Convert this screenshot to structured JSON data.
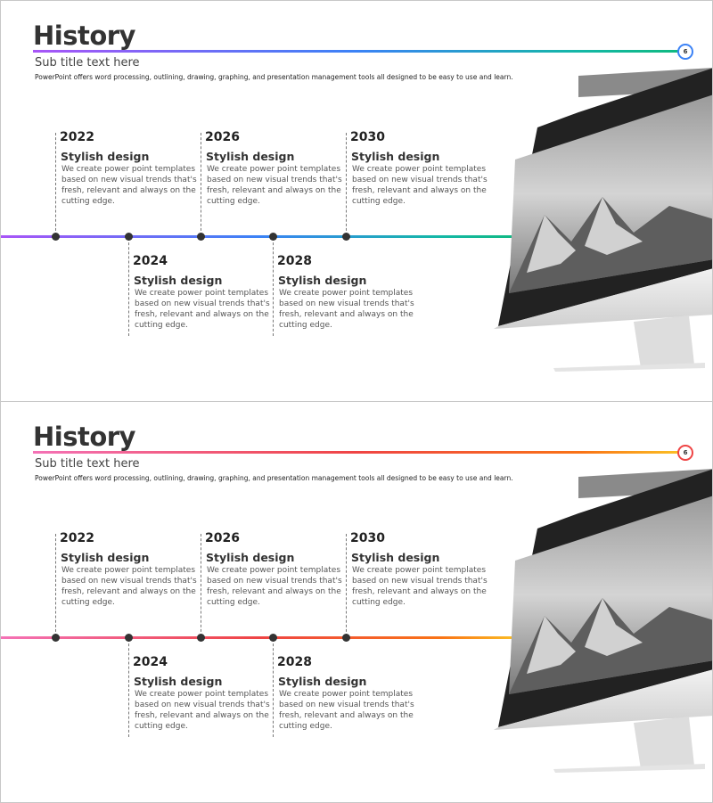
{
  "slides": [
    {
      "title": "History",
      "subtitle": "Sub title text here",
      "description": "PowerPoint offers word processing, outlining, drawing, graphing, and presentation management tools all designed to be easy to use and learn.",
      "page_number": "6",
      "colors": [
        "#a855f7",
        "#3b82f6",
        "#14b8a6",
        "#10b981"
      ],
      "items": [
        {
          "year": "2022",
          "heading": "Stylish design",
          "text": "We create power point templates based on new visual trends that's fresh, relevant and always on the cutting edge."
        },
        {
          "year": "2024",
          "heading": "Stylish design",
          "text": "We create power point templates based on new visual trends that's fresh, relevant and always on the cutting edge."
        },
        {
          "year": "2026",
          "heading": "Stylish design",
          "text": "We create power point templates based on new visual trends that's fresh, relevant and always on the cutting edge."
        },
        {
          "year": "2028",
          "heading": "Stylish design",
          "text": "We create power point templates based on new visual trends that's fresh, relevant and always on the cutting edge."
        },
        {
          "year": "2030",
          "heading": "Stylish design",
          "text": "We create power point templates based on new visual trends that's fresh, relevant and always on the cutting edge."
        }
      ]
    },
    {
      "title": "History",
      "subtitle": "Sub title text here",
      "description": "PowerPoint offers word processing, outlining, drawing, graphing, and presentation management tools all designed to be easy to use and learn.",
      "page_number": "6",
      "colors": [
        "#f472b6",
        "#ef4444",
        "#f97316",
        "#fbbf24"
      ],
      "items": [
        {
          "year": "2022",
          "heading": "Stylish design",
          "text": "We create power point templates based on new visual trends that's fresh, relevant and always on the cutting edge."
        },
        {
          "year": "2024",
          "heading": "Stylish design",
          "text": "We create power point templates based on new visual trends that's fresh, relevant and always on the cutting edge."
        },
        {
          "year": "2026",
          "heading": "Stylish design",
          "text": "We create power point templates based on new visual trends that's fresh, relevant and always on the cutting edge."
        },
        {
          "year": "2028",
          "heading": "Stylish design",
          "text": "We create power point templates based on new visual trends that's fresh, relevant and always on the cutting edge."
        },
        {
          "year": "2030",
          "heading": "Stylish design",
          "text": "We create power point templates based on new visual trends that's fresh, relevant and always on the cutting edge."
        }
      ]
    }
  ]
}
